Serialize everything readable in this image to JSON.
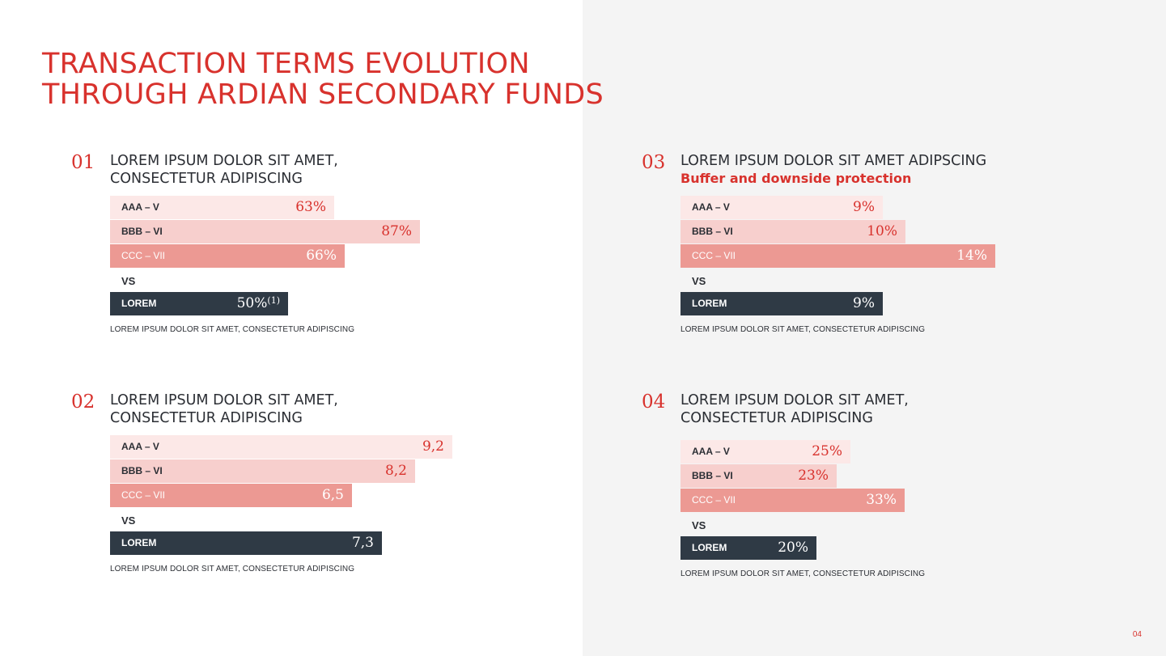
{
  "title": {
    "line1": "TRANSACTION TERMS EVOLUTION",
    "line2": "THROUGH ARDIAN SECONDARY FUNDS"
  },
  "page_number": "04",
  "colors": {
    "accent": "#d8322d",
    "bar_light": "#fce8e7",
    "bar_mid": "#f7cfcd",
    "bar_strong": "#ec9993",
    "bar_dark": "#2f3a45",
    "panel_bg": "#f4f4f4"
  },
  "chart_data": [
    {
      "type": "bar",
      "number": "01",
      "title_line1": "LOREM IPSUM DOLOR SIT AMET,",
      "title_line2": "CONSECTETUR ADIPISCING",
      "subtitle": "",
      "vs_label": "VS",
      "categories": [
        "AAA – V",
        "BBB – VI",
        "CCC – VII"
      ],
      "values": [
        63,
        87,
        66
      ],
      "value_labels": [
        "63%",
        "87%",
        "66%"
      ],
      "compare": {
        "label": "LOREM",
        "value": 50,
        "value_label": "50%",
        "note": "(1)"
      },
      "footnote": "LOREM IPSUM DOLOR SIT AMET, CONSECTETUR ADIPISCING"
    },
    {
      "type": "bar",
      "number": "02",
      "title_line1": "LOREM IPSUM DOLOR SIT AMET,",
      "title_line2": "CONSECTETUR ADIPISCING",
      "subtitle": "",
      "vs_label": "VS",
      "categories": [
        "AAA – V",
        "BBB – VI",
        "CCC – VII"
      ],
      "values": [
        9.2,
        8.2,
        6.5
      ],
      "value_labels": [
        "9,2",
        "8,2",
        "6,5"
      ],
      "compare": {
        "label": "LOREM",
        "value": 7.3,
        "value_label": "7,3",
        "note": ""
      },
      "footnote": "LOREM IPSUM DOLOR SIT AMET, CONSECTETUR ADIPISCING"
    },
    {
      "type": "bar",
      "number": "03",
      "title_line1": "LOREM IPSUM DOLOR SIT AMET ADIPSCING",
      "title_line2": "",
      "subtitle": "Buffer and downside protection",
      "vs_label": "VS",
      "categories": [
        "AAA – V",
        "BBB – VI",
        "CCC – VII"
      ],
      "values": [
        9,
        10,
        14
      ],
      "value_labels": [
        "9%",
        "10%",
        "14%"
      ],
      "compare": {
        "label": "LOREM",
        "value": 9,
        "value_label": "9%",
        "note": ""
      },
      "footnote": "LOREM IPSUM DOLOR SIT AMET, CONSECTETUR ADIPISCING"
    },
    {
      "type": "bar",
      "number": "04",
      "title_line1": "LOREM IPSUM DOLOR SIT AMET,",
      "title_line2": "CONSECTETUR ADIPISCING",
      "subtitle": "",
      "vs_label": "VS",
      "categories": [
        "AAA – V",
        "BBB – VI",
        "CCC – VII"
      ],
      "values": [
        25,
        23,
        33
      ],
      "value_labels": [
        "25%",
        "23%",
        "33%"
      ],
      "compare": {
        "label": "LOREM",
        "value": 20,
        "value_label": "20%",
        "note": ""
      },
      "footnote": "LOREM IPSUM DOLOR SIT AMET, CONSECTETUR ADIPISCING"
    }
  ]
}
